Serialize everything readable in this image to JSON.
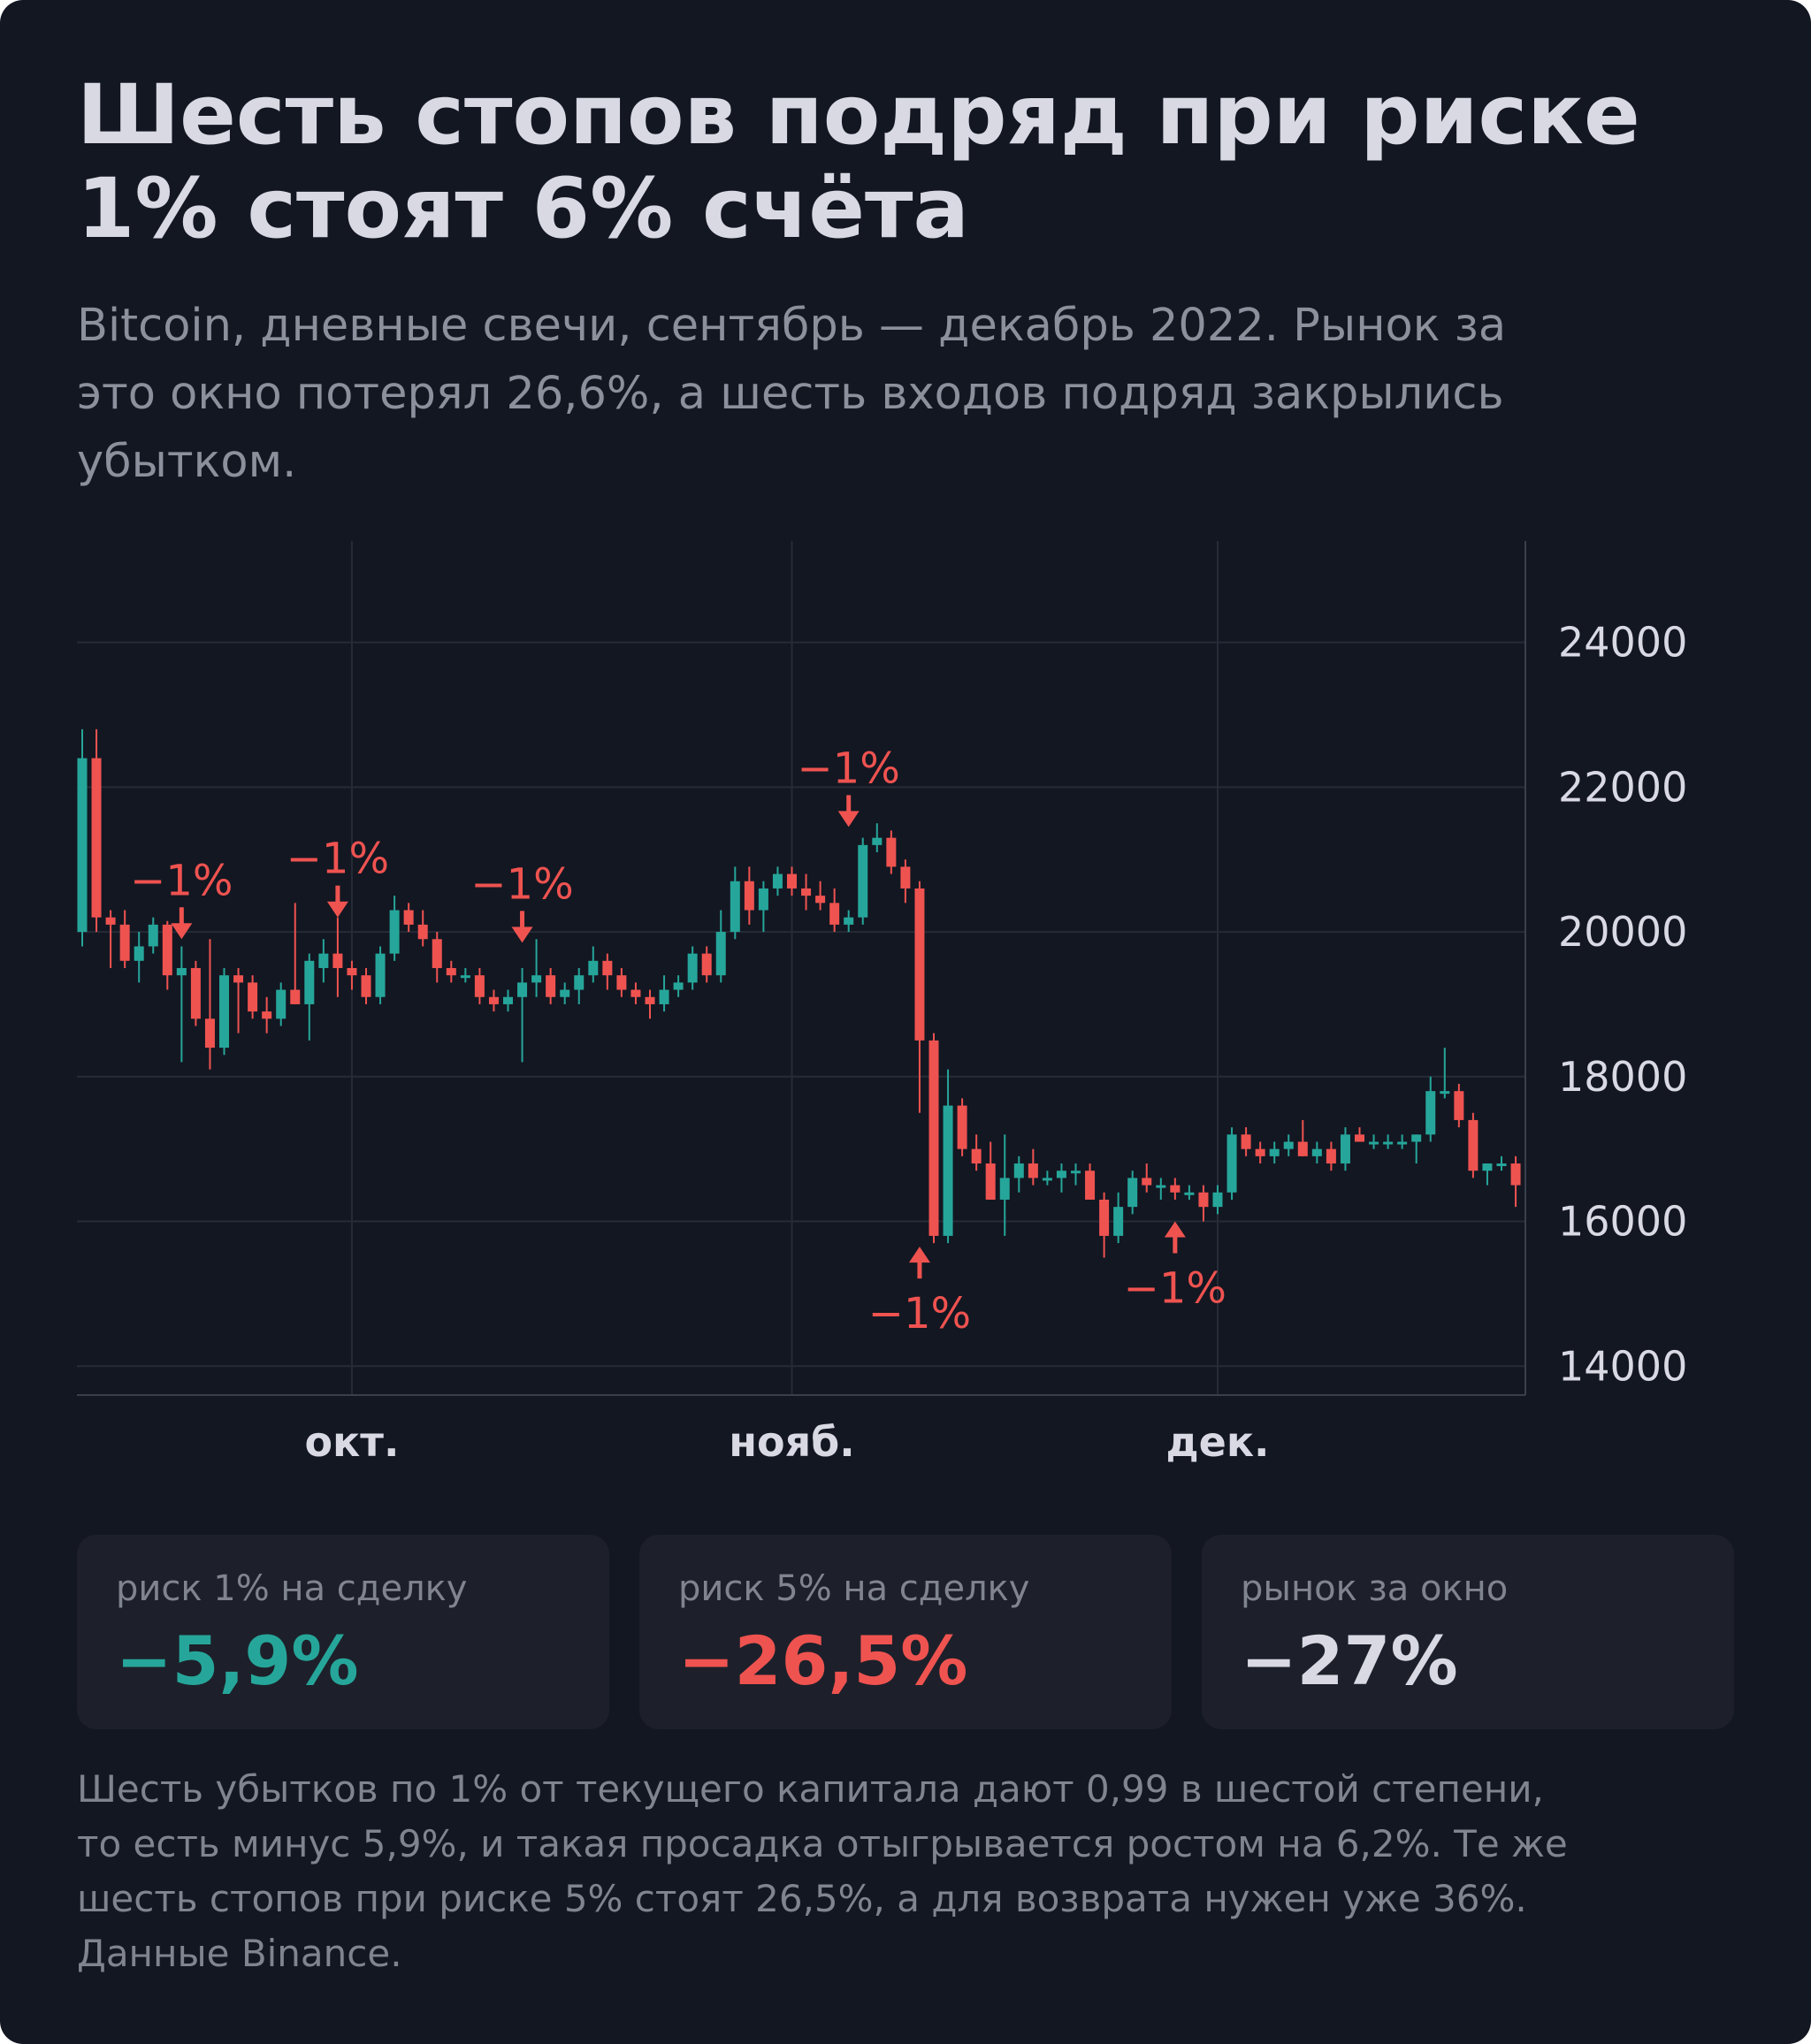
{
  "header": {
    "title_line1": "Шесть стопов подряд при риске",
    "title_line2": "1% стоят 6% счёта",
    "subtitle_line1": "Bitcoin, дневные свечи, сентябрь — декабрь 2022. Рынок за",
    "subtitle_line2": "это окно потерял 26,6%, а шесть входов подряд закрылись",
    "subtitle_line3": "убытком."
  },
  "colors": {
    "up": "#26a69a",
    "down": "#ef5350",
    "background": "#131722",
    "grid": "#262b38",
    "text": "#d8d9e2",
    "muted": "#80848f"
  },
  "chart_data": {
    "type": "candlestick",
    "ylim": [
      13600,
      25400
    ],
    "y_ticks": [
      14000,
      16000,
      18000,
      20000,
      22000,
      24000
    ],
    "y_tick_labels": [
      "14000",
      "16000",
      "18000",
      "20000",
      "22000",
      "24000"
    ],
    "x_tick_labels": [
      {
        "label": "окт.",
        "index": 19
      },
      {
        "label": "нояб.",
        "index": 50
      },
      {
        "label": "дек.",
        "index": 80
      }
    ],
    "grid": true,
    "axis_side": "right",
    "candles": [
      [
        20000,
        22800,
        19800,
        22400
      ],
      [
        22400,
        22800,
        20000,
        20200
      ],
      [
        20200,
        20300,
        19500,
        20100
      ],
      [
        20100,
        20300,
        19500,
        19600
      ],
      [
        19600,
        20000,
        19300,
        19800
      ],
      [
        19800,
        20200,
        19700,
        20100
      ],
      [
        20100,
        20150,
        19200,
        19400
      ],
      [
        19400,
        19800,
        18200,
        19500
      ],
      [
        19500,
        19600,
        18700,
        18800
      ],
      [
        18800,
        19900,
        18100,
        18400
      ],
      [
        18400,
        19500,
        18300,
        19400
      ],
      [
        19400,
        19500,
        18600,
        19300
      ],
      [
        19300,
        19400,
        18800,
        18900
      ],
      [
        18900,
        19100,
        18600,
        18800
      ],
      [
        18800,
        19300,
        18700,
        19200
      ],
      [
        19200,
        20400,
        19000,
        19000
      ],
      [
        19000,
        19700,
        18500,
        19600
      ],
      [
        19500,
        19900,
        19300,
        19700
      ],
      [
        19700,
        20200,
        19100,
        19500
      ],
      [
        19500,
        19600,
        19200,
        19400
      ],
      [
        19400,
        19500,
        19000,
        19100
      ],
      [
        19100,
        19800,
        19000,
        19700
      ],
      [
        19700,
        20500,
        19600,
        20300
      ],
      [
        20300,
        20400,
        20000,
        20100
      ],
      [
        20100,
        20300,
        19800,
        19900
      ],
      [
        19900,
        20000,
        19300,
        19500
      ],
      [
        19500,
        19600,
        19300,
        19400
      ],
      [
        19400,
        19500,
        19300,
        19400
      ],
      [
        19400,
        19500,
        19000,
        19100
      ],
      [
        19100,
        19200,
        18900,
        19000
      ],
      [
        19000,
        19200,
        18900,
        19100
      ],
      [
        19100,
        19500,
        18200,
        19300
      ],
      [
        19300,
        19900,
        19100,
        19400
      ],
      [
        19400,
        19500,
        19000,
        19100
      ],
      [
        19100,
        19300,
        19000,
        19200
      ],
      [
        19200,
        19500,
        19000,
        19400
      ],
      [
        19400,
        19800,
        19300,
        19600
      ],
      [
        19600,
        19700,
        19200,
        19400
      ],
      [
        19400,
        19500,
        19100,
        19200
      ],
      [
        19200,
        19300,
        19000,
        19100
      ],
      [
        19100,
        19200,
        18800,
        19000
      ],
      [
        19000,
        19400,
        18900,
        19200
      ],
      [
        19200,
        19400,
        19100,
        19300
      ],
      [
        19300,
        19800,
        19200,
        19700
      ],
      [
        19700,
        19800,
        19300,
        19400
      ],
      [
        19400,
        20300,
        19300,
        20000
      ],
      [
        20000,
        20900,
        19900,
        20700
      ],
      [
        20700,
        20900,
        20100,
        20300
      ],
      [
        20300,
        20700,
        20000,
        20600
      ],
      [
        20600,
        20900,
        20500,
        20800
      ],
      [
        20800,
        20900,
        20500,
        20600
      ],
      [
        20600,
        20800,
        20300,
        20500
      ],
      [
        20500,
        20700,
        20300,
        20400
      ],
      [
        20400,
        20600,
        20000,
        20100
      ],
      [
        20100,
        20300,
        20000,
        20200
      ],
      [
        20200,
        21300,
        20100,
        21200
      ],
      [
        21200,
        21500,
        21100,
        21300
      ],
      [
        21300,
        21400,
        20800,
        20900
      ],
      [
        20900,
        21000,
        20400,
        20600
      ],
      [
        20600,
        20700,
        17500,
        18500
      ],
      [
        18500,
        18600,
        15700,
        15800
      ],
      [
        15800,
        18100,
        15700,
        17600
      ],
      [
        17600,
        17700,
        16900,
        17000
      ],
      [
        17000,
        17200,
        16700,
        16800
      ],
      [
        16800,
        17100,
        16300,
        16300
      ],
      [
        16300,
        17200,
        15800,
        16600
      ],
      [
        16600,
        16900,
        16400,
        16800
      ],
      [
        16800,
        17000,
        16500,
        16600
      ],
      [
        16600,
        16700,
        16500,
        16600
      ],
      [
        16600,
        16800,
        16400,
        16700
      ],
      [
        16700,
        16800,
        16500,
        16700
      ],
      [
        16700,
        16800,
        16300,
        16300
      ],
      [
        16300,
        16400,
        15500,
        15800
      ],
      [
        15800,
        16400,
        15700,
        16200
      ],
      [
        16200,
        16700,
        16100,
        16600
      ],
      [
        16600,
        16800,
        16400,
        16500
      ],
      [
        16500,
        16600,
        16300,
        16500
      ],
      [
        16500,
        16600,
        16300,
        16400
      ],
      [
        16400,
        16500,
        16300,
        16400
      ],
      [
        16400,
        16500,
        16000,
        16200
      ],
      [
        16200,
        16500,
        16100,
        16400
      ],
      [
        16400,
        17300,
        16300,
        17200
      ],
      [
        17200,
        17300,
        16900,
        17000
      ],
      [
        17000,
        17100,
        16800,
        16900
      ],
      [
        16900,
        17100,
        16800,
        17000
      ],
      [
        17000,
        17200,
        16900,
        17100
      ],
      [
        17100,
        17400,
        16900,
        16900
      ],
      [
        16900,
        17100,
        16800,
        17000
      ],
      [
        17000,
        17100,
        16700,
        16800
      ],
      [
        16800,
        17300,
        16700,
        17200
      ],
      [
        17200,
        17300,
        17100,
        17100
      ],
      [
        17100,
        17200,
        17000,
        17100
      ],
      [
        17100,
        17200,
        17000,
        17100
      ],
      [
        17100,
        17200,
        17000,
        17100
      ],
      [
        17100,
        17200,
        16800,
        17200
      ],
      [
        17200,
        18000,
        17100,
        17800
      ],
      [
        17800,
        18400,
        17700,
        17800
      ],
      [
        17800,
        17900,
        17300,
        17400
      ],
      [
        17400,
        17500,
        16600,
        16700
      ],
      [
        16700,
        16800,
        16500,
        16800
      ],
      [
        16800,
        16900,
        16700,
        16800
      ],
      [
        16800,
        16900,
        16200,
        16500
      ]
    ],
    "annotations": [
      {
        "label": "−1%",
        "index": 7,
        "price": 19900,
        "side": "above"
      },
      {
        "label": "−1%",
        "index": 18,
        "price": 20200,
        "side": "above"
      },
      {
        "label": "−1%",
        "index": 31,
        "price": 19850,
        "side": "above"
      },
      {
        "label": "−1%",
        "index": 54,
        "price": 21450,
        "side": "above"
      },
      {
        "label": "−1%",
        "index": 59,
        "price": 15650,
        "side": "below"
      },
      {
        "label": "−1%",
        "index": 77,
        "price": 16000,
        "side": "below"
      }
    ]
  },
  "stats": [
    {
      "label": "риск 1% на сделку",
      "value": "−5,9%",
      "color": "#26a69a"
    },
    {
      "label": "риск 5% на сделку",
      "value": "−26,5%",
      "color": "#ef5350"
    },
    {
      "label": "рынок за окно",
      "value": "−27%",
      "color": "#d8d9e2"
    }
  ],
  "footnote": {
    "line1": "Шесть убытков по 1% от текущего капитала дают 0,99 в шестой степени,",
    "line2": "то есть минус 5,9%, и такая просадка отыгрывается ростом на 6,2%. Те же",
    "line3": "шесть стопов при риске 5% стоят 26,5%, а для возврата нужен уже 36%.",
    "line4": "Данные Binance."
  }
}
